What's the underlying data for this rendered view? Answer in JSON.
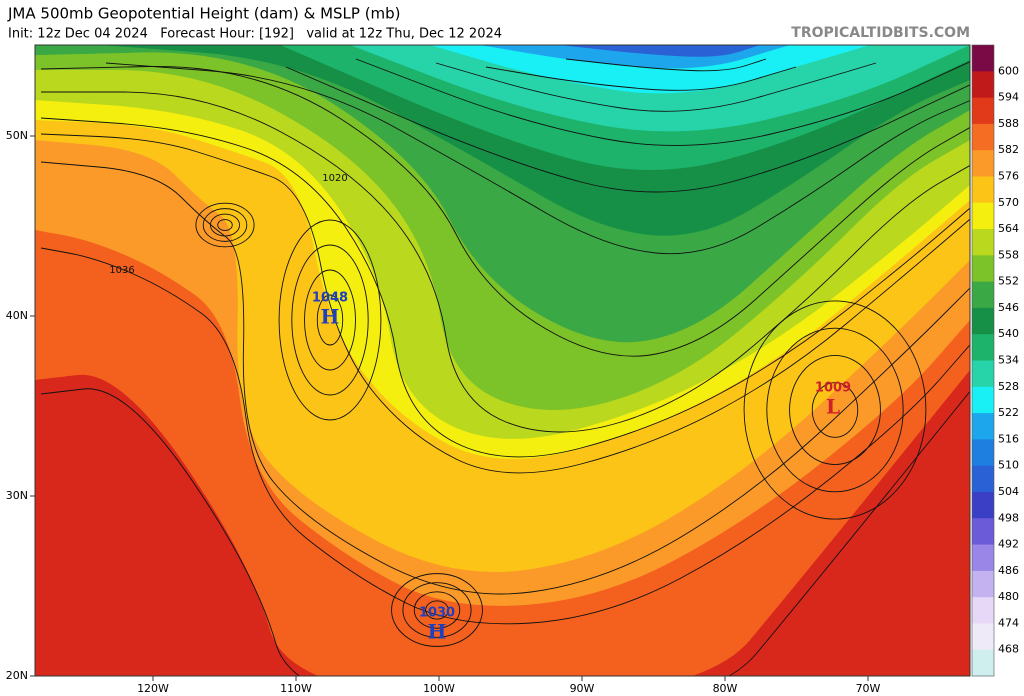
{
  "header": {
    "title": "JMA 500mb Geopotential Height (dam) & MSLP (mb)",
    "subtitle": "Init: 12z Dec 04 2024   Forecast Hour: [192]   valid at 12z Thu, Dec 12 2024",
    "watermark": "TROPICALTIDBITS.COM"
  },
  "map": {
    "x_labels": [
      "120W",
      "110W",
      "100W",
      "90W",
      "80W",
      "70W"
    ],
    "y_labels": [
      "50N",
      "40N",
      "30N",
      "20N"
    ],
    "centers": [
      {
        "label": "1048",
        "symbol": "H"
      },
      {
        "label": "1030",
        "symbol": "H"
      },
      {
        "label": "1009",
        "symbol": "L"
      }
    ],
    "contour_labels": [
      "1020",
      "1036"
    ]
  },
  "colorbar": {
    "labels": [
      600,
      594,
      588,
      582,
      576,
      570,
      564,
      558,
      552,
      546,
      540,
      534,
      528,
      522,
      516,
      510,
      504,
      498,
      492,
      486,
      480,
      474,
      468
    ]
  }
}
